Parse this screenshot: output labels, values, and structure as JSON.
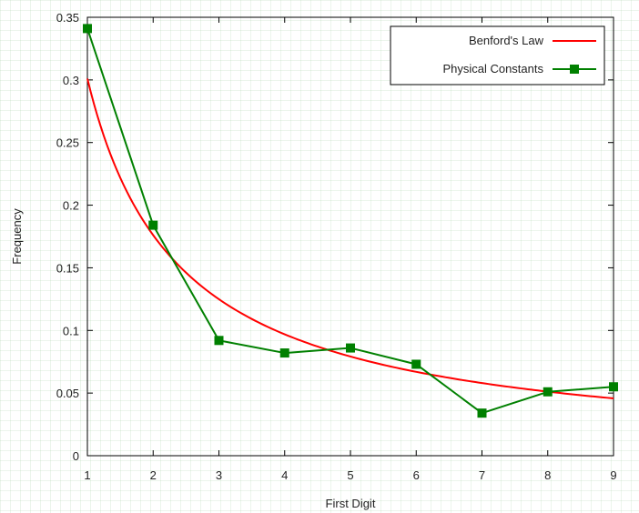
{
  "chart_data": {
    "type": "line",
    "title": "",
    "xlabel": "First Digit",
    "ylabel": "Frequency",
    "xlim": [
      1,
      9
    ],
    "ylim": [
      0,
      0.35
    ],
    "x_ticks": [
      1,
      2,
      3,
      4,
      5,
      6,
      7,
      8,
      9
    ],
    "y_ticks": [
      0,
      0.05,
      0.1,
      0.15,
      0.2,
      0.25,
      0.3,
      0.35
    ],
    "x_tick_labels": [
      "1",
      "2",
      "3",
      "4",
      "5",
      "6",
      "7",
      "8",
      "9"
    ],
    "y_tick_labels": [
      "0",
      "0.05",
      "0.1",
      "0.15",
      "0.2",
      "0.25",
      "0.3",
      "0.35"
    ],
    "grid": false,
    "legend": {
      "placement": "top-right",
      "boxed": true
    },
    "series": [
      {
        "name": "Benford's Law",
        "kind": "curve",
        "formula": "log10(1 + 1/d)",
        "color": "#ff0000",
        "marker": "none",
        "x": [
          1,
          2,
          3,
          4,
          5,
          6,
          7,
          8,
          9
        ],
        "values": [
          0.301,
          0.176,
          0.125,
          0.097,
          0.079,
          0.067,
          0.058,
          0.051,
          0.046
        ]
      },
      {
        "name": "Physical Constants",
        "kind": "line-marker",
        "color": "#008000",
        "marker": "square",
        "x": [
          1,
          2,
          3,
          4,
          5,
          6,
          7,
          8,
          9
        ],
        "values": [
          0.341,
          0.184,
          0.092,
          0.082,
          0.086,
          0.073,
          0.034,
          0.051,
          0.055
        ]
      }
    ]
  }
}
